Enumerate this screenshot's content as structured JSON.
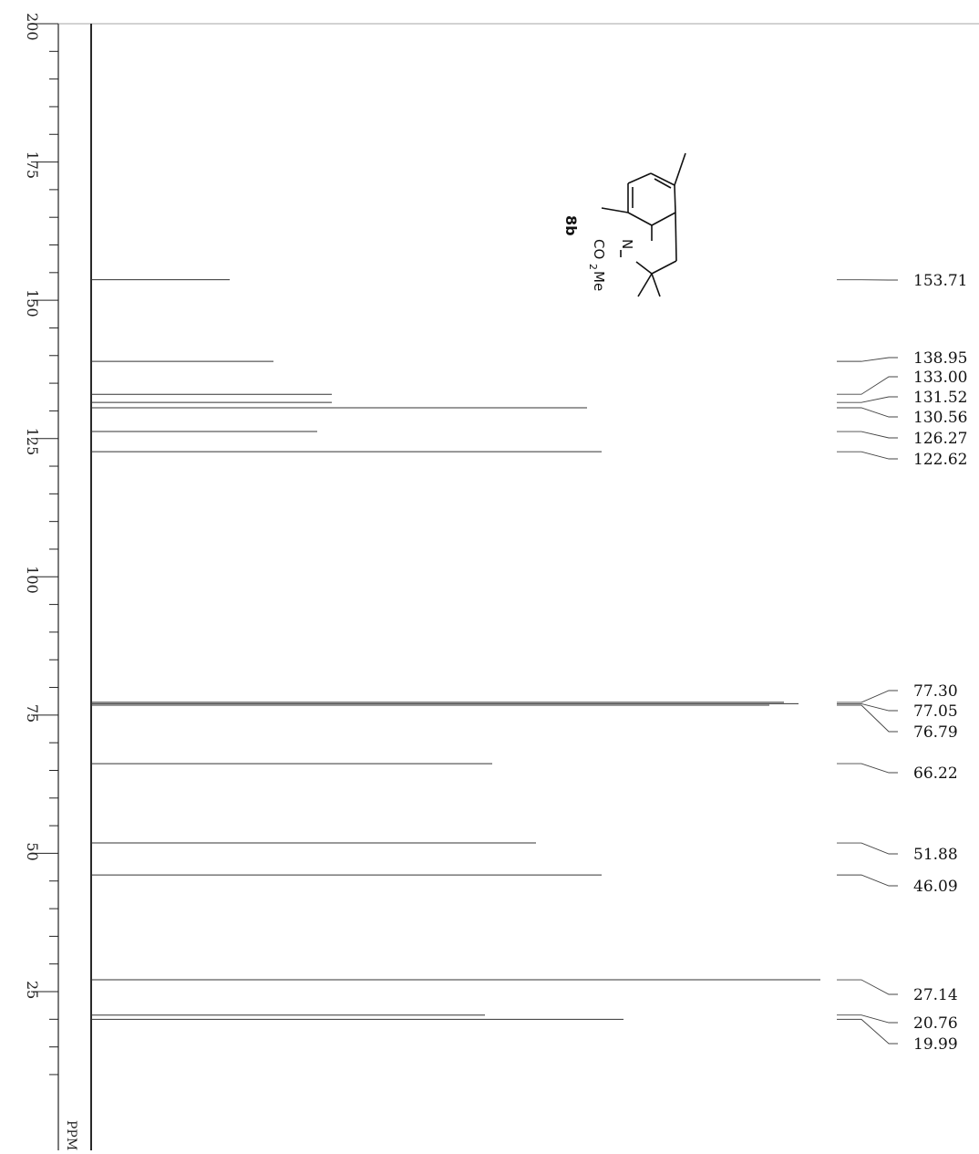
{
  "chart_data": {
    "type": "line",
    "title": "",
    "xlabel": "PPM",
    "ylabel": "",
    "x_axis": "ppm",
    "xlim": [
      200,
      0
    ],
    "x_ticks": [
      200,
      175,
      150,
      125,
      100,
      75,
      50,
      25
    ],
    "grid": false,
    "orientation": "rotated-90",
    "peak_labels": [
      "153.71",
      "138.95",
      "133.00",
      "131.52",
      "130.56",
      "126.27",
      "122.62",
      "77.30",
      "77.05",
      "76.79",
      "66.22",
      "51.88",
      "46.09",
      "27.14",
      "20.76",
      "19.99"
    ],
    "series": [
      {
        "peaks": [
          {
            "ppm": 153.71,
            "intensity": 0.19
          },
          {
            "ppm": 138.95,
            "intensity": 0.25
          },
          {
            "ppm": 133.0,
            "intensity": 0.33
          },
          {
            "ppm": 131.52,
            "intensity": 0.33
          },
          {
            "ppm": 130.56,
            "intensity": 0.68
          },
          {
            "ppm": 126.27,
            "intensity": 0.31
          },
          {
            "ppm": 122.62,
            "intensity": 0.7
          },
          {
            "ppm": 77.3,
            "intensity": 0.95
          },
          {
            "ppm": 77.05,
            "intensity": 0.97
          },
          {
            "ppm": 76.79,
            "intensity": 0.93
          },
          {
            "ppm": 66.22,
            "intensity": 0.55
          },
          {
            "ppm": 51.88,
            "intensity": 0.61
          },
          {
            "ppm": 46.09,
            "intensity": 0.7
          },
          {
            "ppm": 27.14,
            "intensity": 1.0
          },
          {
            "ppm": 20.76,
            "intensity": 0.54
          },
          {
            "ppm": 19.99,
            "intensity": 0.73
          }
        ]
      }
    ],
    "compound": {
      "label": "8b",
      "groups": [
        "N",
        "CO",
        "2",
        "Me"
      ]
    }
  }
}
